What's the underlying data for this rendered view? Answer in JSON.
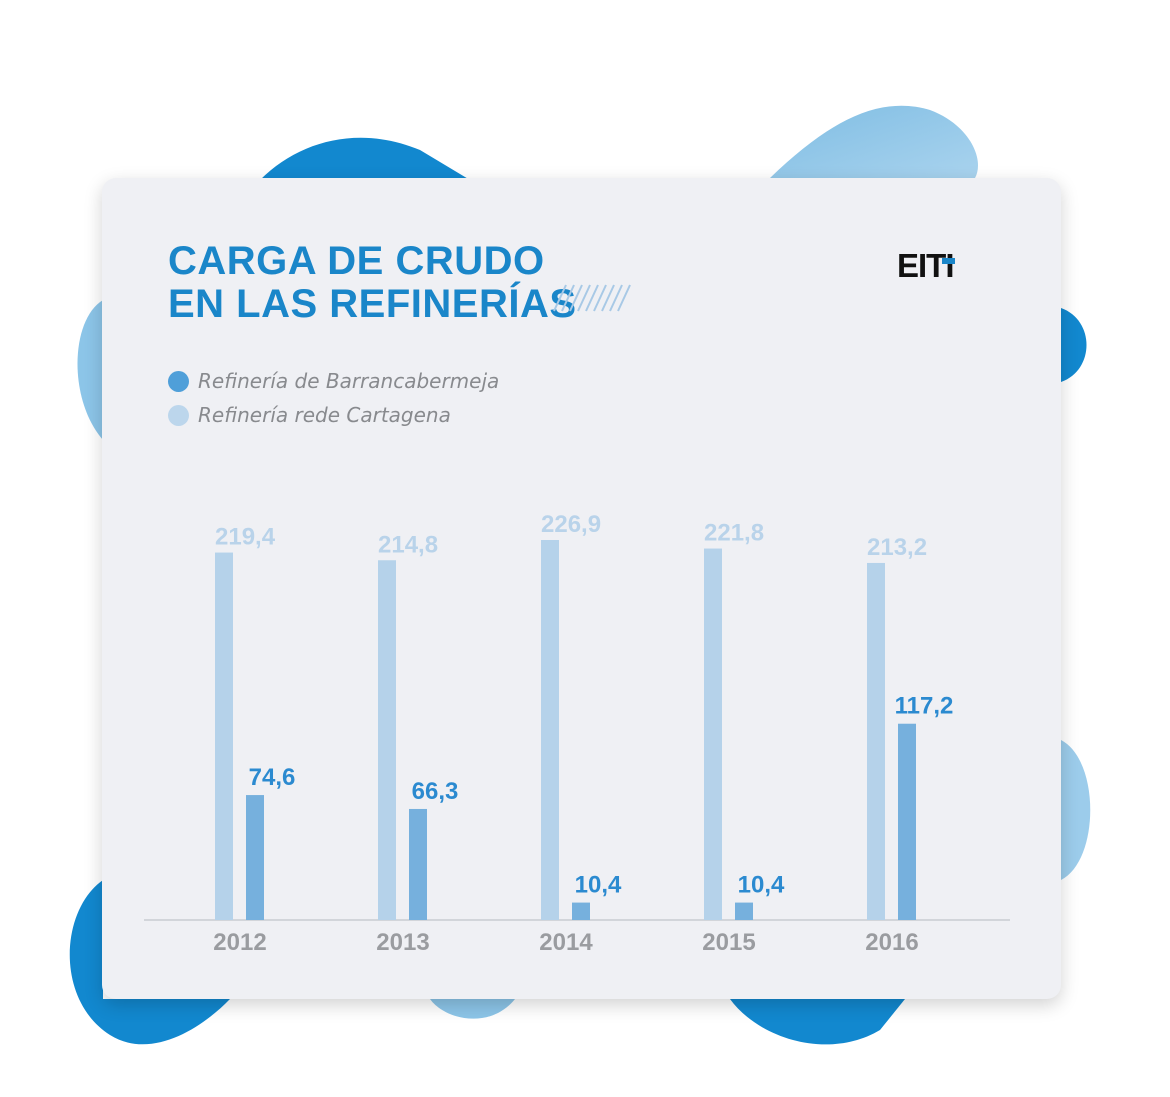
{
  "colors": {
    "barrancabermeja": "#76b0dd",
    "barrancabermeja_label": "#2b8ad0",
    "cartagena": "#b5d2ea",
    "cartagena_label": "#b9d3ea",
    "title": "#1a86c9",
    "year_label": "#9a9ca0"
  },
  "title": {
    "line1": "CARGA DE CRUDO",
    "line2": "EN LAS REFINERÍAS"
  },
  "logo": {
    "text": "EITI"
  },
  "legend": [
    {
      "label": "Refinería de Barrancabermeja",
      "color": "#4f9fd9"
    },
    {
      "label": "Refinería rede Cartagena",
      "color": "#bcd6ec"
    }
  ],
  "chart_data": {
    "type": "bar",
    "categories": [
      "2012",
      "2013",
      "2014",
      "2015",
      "2016"
    ],
    "series": [
      {
        "name": "Refinería rede Cartagena",
        "values": [
          219.4,
          214.8,
          226.9,
          221.8,
          213.2
        ],
        "labels": [
          "219,4",
          "214,8",
          "226,9",
          "221,8",
          "213,2"
        ]
      },
      {
        "name": "Refinería de Barrancabermeja",
        "values": [
          74.6,
          66.3,
          10.4,
          10.4,
          117.2
        ],
        "labels": [
          "74,6",
          "66,3",
          "10,4",
          "10,4",
          "117,2"
        ]
      }
    ],
    "ylim": [
      0,
      226.9
    ],
    "grid": false,
    "legend_position": "top-left"
  }
}
